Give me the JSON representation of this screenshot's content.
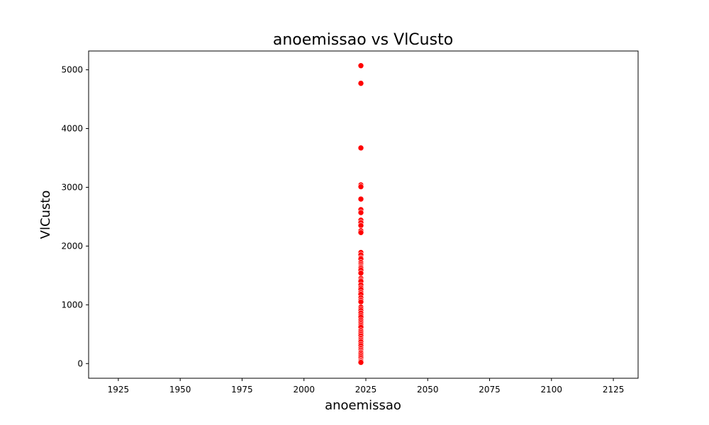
{
  "chart_data": {
    "type": "scatter",
    "title": "anoemissao vs VlCusto",
    "xlabel": "anoemissao",
    "ylabel": "VlCusto",
    "xlim": [
      1913,
      2135
    ],
    "ylim": [
      -250,
      5320
    ],
    "xticks": [
      1925,
      1950,
      1975,
      2000,
      2025,
      2050,
      2075,
      2100,
      2125
    ],
    "yticks": [
      0,
      1000,
      2000,
      3000,
      4000,
      5000
    ],
    "grid": false,
    "legend": "none",
    "marker_color": "#ff0000",
    "series": [
      {
        "name": "VlCusto",
        "x": [
          2023,
          2023,
          2023,
          2023,
          2023,
          2023,
          2023,
          2023,
          2023,
          2023,
          2023,
          2023,
          2023,
          2023,
          2023,
          2023,
          2023,
          2023,
          2023,
          2023,
          2023,
          2023,
          2023,
          2023,
          2023,
          2023,
          2023,
          2023,
          2023,
          2023,
          2023,
          2023,
          2023,
          2023,
          2023,
          2023,
          2023,
          2023,
          2023,
          2023,
          2023,
          2023,
          2023,
          2023,
          2023,
          2023,
          2023,
          2023,
          2023,
          2023,
          2023,
          2023,
          2023,
          2023,
          2023,
          2023,
          2023,
          2023,
          2023,
          2023,
          2023,
          2023,
          2023,
          2023,
          2023
        ],
        "y": [
          5070,
          4770,
          3670,
          3040,
          3010,
          2800,
          2620,
          2570,
          2440,
          2400,
          2350,
          2260,
          2230,
          1890,
          1850,
          1800,
          1780,
          1720,
          1690,
          1660,
          1640,
          1620,
          1590,
          1540,
          1450,
          1420,
          1400,
          1340,
          1290,
          1260,
          1210,
          1180,
          1120,
          1080,
          1050,
          960,
          930,
          900,
          860,
          820,
          790,
          740,
          710,
          680,
          650,
          620,
          560,
          530,
          500,
          470,
          430,
          400,
          370,
          330,
          300,
          260,
          230,
          200,
          180,
          150,
          120,
          90,
          60,
          40,
          20
        ]
      }
    ]
  }
}
